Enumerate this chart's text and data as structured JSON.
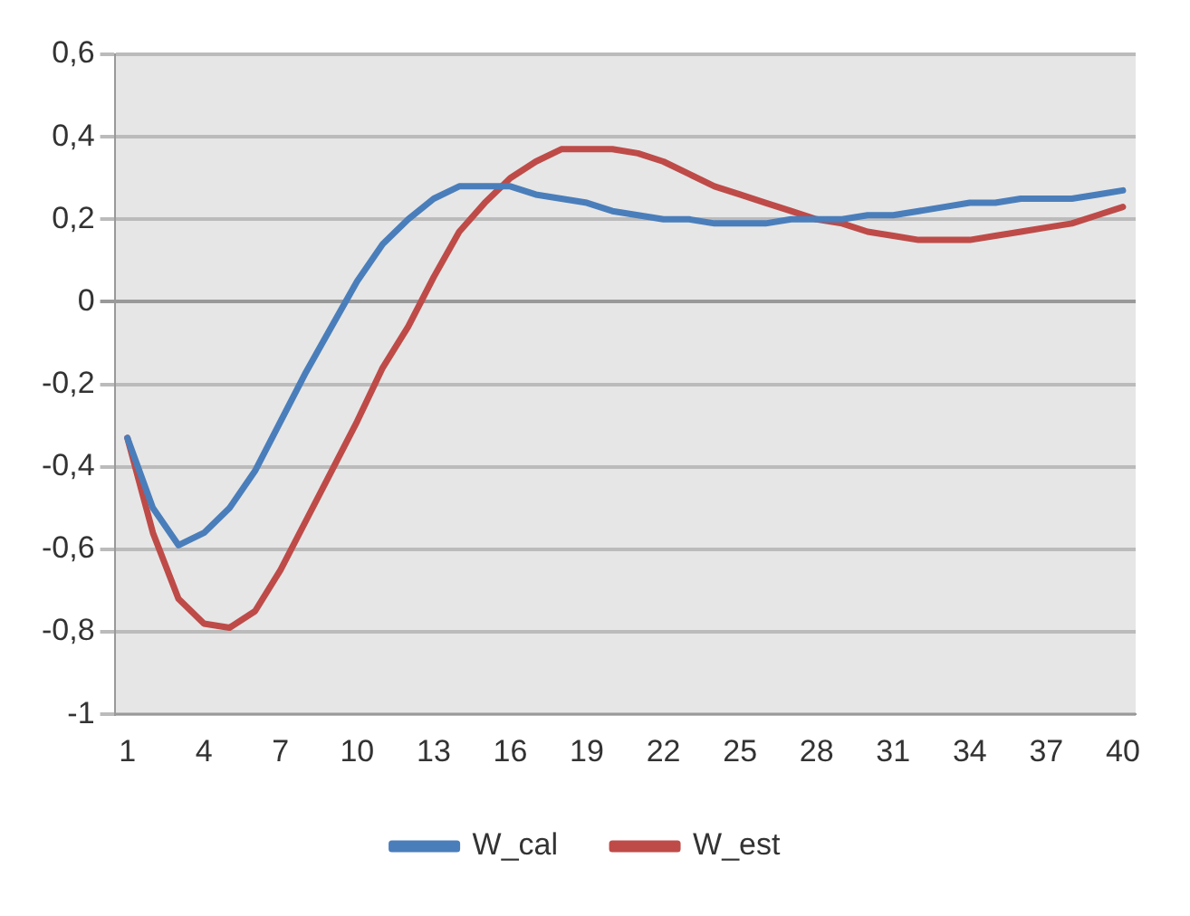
{
  "chart_data": {
    "type": "line",
    "categories": [
      "1",
      null,
      null,
      "4",
      null,
      null,
      "7",
      null,
      null,
      "10",
      null,
      null,
      "13",
      null,
      null,
      "16",
      null,
      null,
      "19",
      null,
      null,
      "22",
      null,
      null,
      "25",
      null,
      null,
      "28",
      null,
      null,
      "31",
      null,
      null,
      "34",
      null,
      null,
      "37",
      null,
      null,
      "40"
    ],
    "series": [
      {
        "name": "W_cal",
        "color": "#4a7ebb",
        "values": [
          -0.33,
          -0.5,
          -0.59,
          -0.56,
          -0.5,
          -0.41,
          -0.29,
          -0.17,
          -0.06,
          0.05,
          0.14,
          0.2,
          0.25,
          0.28,
          0.28,
          0.28,
          0.26,
          0.25,
          0.24,
          0.22,
          0.21,
          0.2,
          0.2,
          0.19,
          0.19,
          0.19,
          0.2,
          0.2,
          0.2,
          0.21,
          0.21,
          0.22,
          0.23,
          0.24,
          0.24,
          0.25,
          0.25,
          0.25,
          0.26,
          0.27
        ]
      },
      {
        "name": "W_est",
        "color": "#be4b48",
        "values": [
          -0.33,
          -0.56,
          -0.72,
          -0.78,
          -0.79,
          -0.75,
          -0.65,
          -0.53,
          -0.41,
          -0.29,
          -0.16,
          -0.06,
          0.06,
          0.17,
          0.24,
          0.3,
          0.34,
          0.37,
          0.37,
          0.37,
          0.36,
          0.34,
          0.31,
          0.28,
          0.26,
          0.24,
          0.22,
          0.2,
          0.19,
          0.17,
          0.16,
          0.15,
          0.15,
          0.15,
          0.16,
          0.17,
          0.18,
          0.19,
          0.21,
          0.23
        ]
      }
    ],
    "ylim": [
      -1,
      0.6
    ],
    "yticks": [
      -1,
      {
        "value": -0.8,
        "label": "-0,8"
      },
      {
        "value": -0.6,
        "label": "-0,6"
      },
      {
        "value": -0.4,
        "label": "-0,4"
      },
      {
        "value": -0.2,
        "label": "-0,2"
      },
      0,
      {
        "value": 0.2,
        "label": "0,2"
      },
      {
        "value": 0.4,
        "label": "0,4"
      },
      {
        "value": 0.6,
        "label": "0,6"
      }
    ],
    "grid": "y",
    "legend": "bottom",
    "marker": "none",
    "line_style": "solid"
  }
}
